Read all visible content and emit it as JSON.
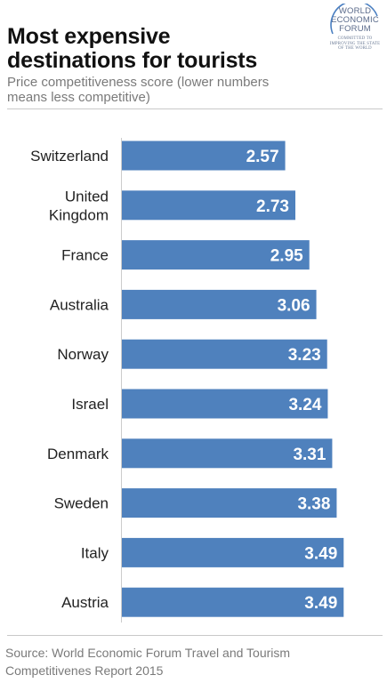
{
  "header": {
    "title_line1": "Most expensive",
    "title_line2": "destinations for tourists",
    "subtitle_line1": "Price competitiveness score (lower numbers",
    "subtitle_line2": "means less competitive)"
  },
  "logo": {
    "line1": "WORLD",
    "line2": "ECONOMIC",
    "line3": "FORUM",
    "tag1": "COMMITTED TO",
    "tag2": "IMPROVING THE STATE",
    "tag3": "OF THE WORLD"
  },
  "footer": {
    "source_line1": "Source: World Economic Forum Travel and Tourism",
    "source_line2": "Competitivenes Report 2015"
  },
  "colors": {
    "bar": "#4f81bd",
    "bar_label": "#ffffff",
    "axis": "#cccccc",
    "category": "#222222"
  },
  "chart_data": {
    "type": "bar",
    "orientation": "horizontal",
    "categories": [
      [
        "Switzerland"
      ],
      [
        "United",
        "Kingdom"
      ],
      [
        "France"
      ],
      [
        "Australia"
      ],
      [
        "Norway"
      ],
      [
        "Israel"
      ],
      [
        "Denmark"
      ],
      [
        "Sweden"
      ],
      [
        "Italy"
      ],
      [
        "Austria"
      ]
    ],
    "values": [
      2.57,
      2.73,
      2.95,
      3.06,
      3.23,
      3.24,
      3.31,
      3.38,
      3.49,
      3.49
    ],
    "value_labels": [
      "2.57",
      "2.73",
      "2.95",
      "3.06",
      "3.23",
      "3.24",
      "3.31",
      "3.38",
      "3.49",
      "3.49"
    ],
    "xlim": [
      0,
      3.9
    ],
    "grid": false,
    "legend": "none"
  }
}
